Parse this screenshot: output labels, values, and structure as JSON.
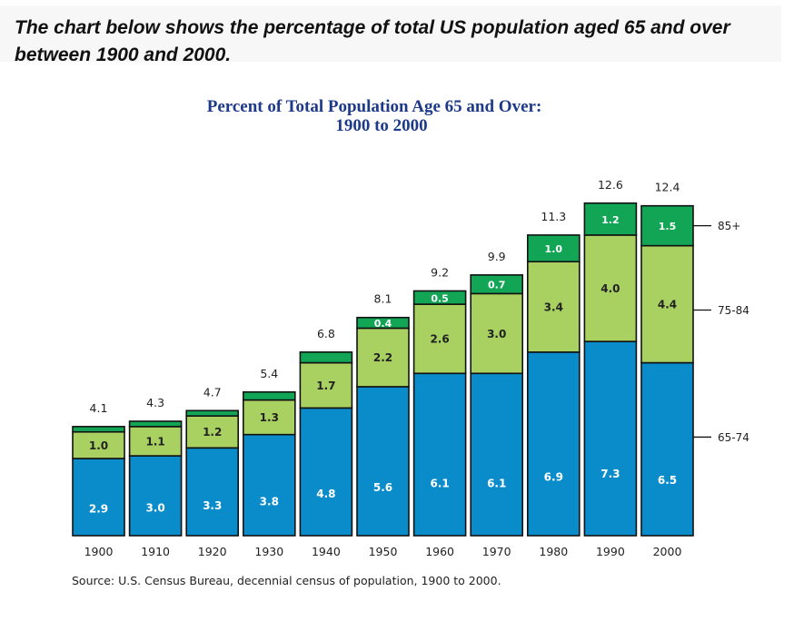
{
  "intro": "The chart below shows the percentage of total US population aged 65 and over between 1900 and 2000.",
  "colors": {
    "age_65_74": "#0a8ccb",
    "age_75_84": "#a8d162",
    "age_85_plus": "#12a556",
    "title": "#1d3a8a",
    "text": "#222222"
  },
  "chart_data": {
    "type": "bar",
    "stacked": true,
    "title": "Percent of Total Population Age 65 and Over:",
    "subtitle": "1900 to 2000",
    "categories": [
      "1900",
      "1910",
      "1920",
      "1930",
      "1940",
      "1950",
      "1960",
      "1970",
      "1980",
      "1990",
      "2000"
    ],
    "series": [
      {
        "name": "65-74",
        "values": [
          2.9,
          3.0,
          3.3,
          3.8,
          4.8,
          5.6,
          6.1,
          6.1,
          6.9,
          7.3,
          6.5
        ],
        "labels": [
          "2.9",
          "3.0",
          "3.3",
          "3.8",
          "4.8",
          "5.6",
          "6.1",
          "6.1",
          "6.9",
          "7.3",
          "6.5"
        ]
      },
      {
        "name": "75-84",
        "values": [
          1.0,
          1.1,
          1.2,
          1.3,
          1.7,
          2.2,
          2.6,
          3.0,
          3.4,
          4.0,
          4.4
        ],
        "labels": [
          "1.0",
          "1.1",
          "1.2",
          "1.3",
          "1.7",
          "2.2",
          "2.6",
          "3.0",
          "3.4",
          "4.0",
          "4.4"
        ]
      },
      {
        "name": "85+",
        "values": [
          0.2,
          0.2,
          0.2,
          0.3,
          0.4,
          0.4,
          0.5,
          0.7,
          1.0,
          1.2,
          1.5
        ],
        "labels": [
          "",
          "",
          "",
          "",
          "",
          "0.4",
          "0.5",
          "0.7",
          "1.0",
          "1.2",
          "1.5"
        ]
      }
    ],
    "totals": [
      "4.1",
      "4.3",
      "4.7",
      "5.4",
      "6.8",
      "8.1",
      "9.2",
      "9.9",
      "11.3",
      "12.6",
      "12.4"
    ],
    "ylim": [
      0,
      14.5
    ],
    "grid": false,
    "legend": "right, labels aligned to the last bar segments",
    "source": "Source: U.S. Census Bureau, decennial census of population, 1900 to 2000."
  }
}
